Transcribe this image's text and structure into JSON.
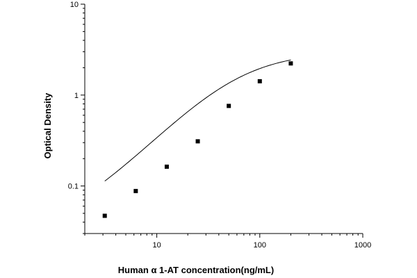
{
  "chart_data": {
    "type": "scatter",
    "xlabel": "Human α 1-AT concentration(ng/mL)",
    "ylabel": "Optical Density",
    "xscale": "log",
    "yscale": "log",
    "xlim": [
      2,
      1000
    ],
    "ylim": [
      0.03,
      10
    ],
    "x_ticks": [
      10,
      100,
      1000
    ],
    "x_tick_labels": [
      "10",
      "100",
      "1000"
    ],
    "y_ticks": [
      0.1,
      1,
      10
    ],
    "y_tick_labels": [
      "0.1",
      "1",
      "10"
    ],
    "grid": false,
    "legend": "none",
    "series": [
      {
        "marker": "square",
        "x": [
          3.125,
          6.25,
          12.5,
          25,
          50,
          100,
          200
        ],
        "y": [
          0.047,
          0.088,
          0.163,
          0.31,
          0.76,
          1.42,
          2.23
        ]
      }
    ],
    "fit": {
      "type": "four-parameter logistic",
      "x_range": [
        3.125,
        200
      ],
      "A": 0.03,
      "D": 3.0,
      "C": 60,
      "B": 1.2
    }
  }
}
